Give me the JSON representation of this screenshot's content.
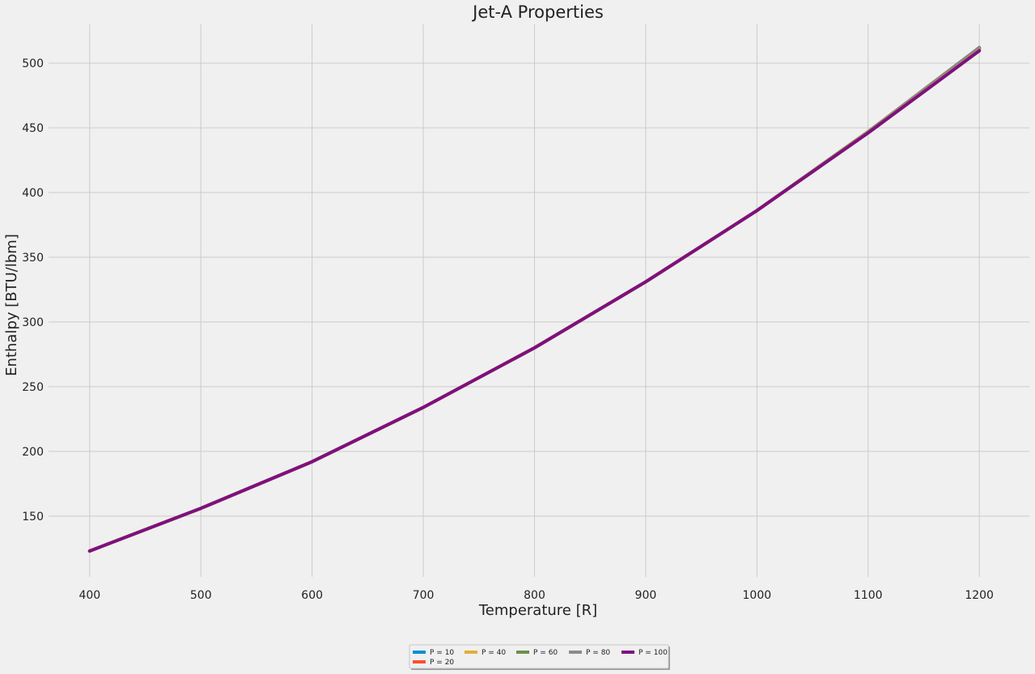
{
  "chart_data": {
    "type": "line",
    "title": "Jet-A Properties",
    "xlabel": "Temperature [R]",
    "ylabel": "Enthalpy [BTU/lbm]",
    "xlim": [
      363,
      1245
    ],
    "ylim": [
      103,
      530
    ],
    "x_ticks": [
      400,
      500,
      600,
      700,
      800,
      900,
      1000,
      1100,
      1200
    ],
    "y_ticks": [
      150,
      200,
      250,
      300,
      350,
      400,
      450,
      500
    ],
    "grid": true,
    "legend_position": "bottom-center",
    "x": [
      400,
      500,
      600,
      700,
      800,
      900,
      1000,
      1100,
      1200
    ],
    "series": [
      {
        "name": "P = 10",
        "color": "#008fd5",
        "values": [
          123,
          156,
          192,
          234,
          280,
          331,
          386,
          447,
          512
        ]
      },
      {
        "name": "P = 20",
        "color": "#fc4f30",
        "values": [
          123,
          156,
          192,
          234,
          280,
          331,
          386,
          447,
          511.5
        ]
      },
      {
        "name": "P = 40",
        "color": "#e5ae38",
        "values": [
          123,
          156,
          192,
          234,
          280,
          331,
          386,
          447,
          511
        ]
      },
      {
        "name": "P = 60",
        "color": "#6d904f",
        "values": [
          123,
          156,
          192,
          234,
          280,
          331,
          386,
          446.8,
          510.8
        ]
      },
      {
        "name": "P = 80",
        "color": "#8b8b8b",
        "values": [
          123,
          156,
          192,
          234,
          280,
          331,
          386,
          446.5,
          510.5
        ]
      },
      {
        "name": "P = 100",
        "color": "#810f7c",
        "values": [
          123,
          156,
          192,
          234,
          280,
          331,
          386,
          446,
          509.5
        ]
      }
    ]
  }
}
